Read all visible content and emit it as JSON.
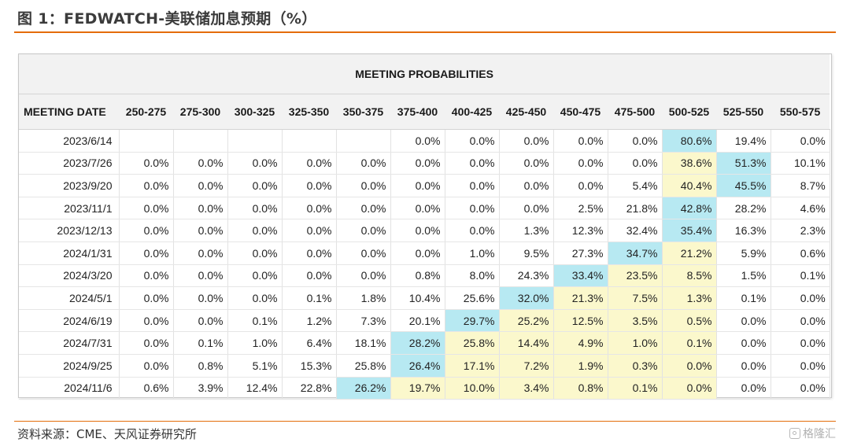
{
  "figure": {
    "title": "图 1：FEDWATCH-美联储加息预期（%）",
    "source": "资料来源：CME、天风证券研究所",
    "watermark": "格隆汇"
  },
  "table": {
    "title": "MEETING PROBABILITIES",
    "columns": [
      "MEETING DATE",
      "250-275",
      "275-300",
      "300-325",
      "325-350",
      "350-375",
      "375-400",
      "400-425",
      "425-450",
      "450-475",
      "475-500",
      "500-525",
      "525-550",
      "550-575"
    ],
    "rows": [
      {
        "date": "2023/6/14",
        "cells": [
          "",
          "",
          "",
          "",
          "",
          "0.0%",
          "0.0%",
          "0.0%",
          "0.0%",
          "0.0%",
          "80.6%",
          "19.4%",
          "0.0%"
        ],
        "hl": [
          "",
          "",
          "",
          "",
          "",
          "",
          "",
          "",
          "",
          "",
          "b",
          "",
          ""
        ]
      },
      {
        "date": "2023/7/26",
        "cells": [
          "0.0%",
          "0.0%",
          "0.0%",
          "0.0%",
          "0.0%",
          "0.0%",
          "0.0%",
          "0.0%",
          "0.0%",
          "0.0%",
          "38.6%",
          "51.3%",
          "10.1%"
        ],
        "hl": [
          "",
          "",
          "",
          "",
          "",
          "",
          "",
          "",
          "",
          "",
          "y",
          "b",
          ""
        ]
      },
      {
        "date": "2023/9/20",
        "cells": [
          "0.0%",
          "0.0%",
          "0.0%",
          "0.0%",
          "0.0%",
          "0.0%",
          "0.0%",
          "0.0%",
          "0.0%",
          "5.4%",
          "40.4%",
          "45.5%",
          "8.7%"
        ],
        "hl": [
          "",
          "",
          "",
          "",
          "",
          "",
          "",
          "",
          "",
          "",
          "y",
          "b",
          ""
        ]
      },
      {
        "date": "2023/11/1",
        "cells": [
          "0.0%",
          "0.0%",
          "0.0%",
          "0.0%",
          "0.0%",
          "0.0%",
          "0.0%",
          "0.0%",
          "2.5%",
          "21.8%",
          "42.8%",
          "28.2%",
          "4.6%"
        ],
        "hl": [
          "",
          "",
          "",
          "",
          "",
          "",
          "",
          "",
          "",
          "",
          "b",
          "",
          ""
        ]
      },
      {
        "date": "2023/12/13",
        "cells": [
          "0.0%",
          "0.0%",
          "0.0%",
          "0.0%",
          "0.0%",
          "0.0%",
          "0.0%",
          "1.3%",
          "12.3%",
          "32.4%",
          "35.4%",
          "16.3%",
          "2.3%"
        ],
        "hl": [
          "",
          "",
          "",
          "",
          "",
          "",
          "",
          "",
          "",
          "",
          "b",
          "",
          ""
        ]
      },
      {
        "date": "2024/1/31",
        "cells": [
          "0.0%",
          "0.0%",
          "0.0%",
          "0.0%",
          "0.0%",
          "0.0%",
          "1.0%",
          "9.5%",
          "27.3%",
          "34.7%",
          "21.2%",
          "5.9%",
          "0.6%"
        ],
        "hl": [
          "",
          "",
          "",
          "",
          "",
          "",
          "",
          "",
          "",
          "b",
          "y",
          "",
          ""
        ]
      },
      {
        "date": "2024/3/20",
        "cells": [
          "0.0%",
          "0.0%",
          "0.0%",
          "0.0%",
          "0.0%",
          "0.8%",
          "8.0%",
          "24.3%",
          "33.4%",
          "23.5%",
          "8.5%",
          "1.5%",
          "0.1%"
        ],
        "hl": [
          "",
          "",
          "",
          "",
          "",
          "",
          "",
          "",
          "b",
          "y",
          "y",
          "",
          ""
        ]
      },
      {
        "date": "2024/5/1",
        "cells": [
          "0.0%",
          "0.0%",
          "0.0%",
          "0.1%",
          "1.8%",
          "10.4%",
          "25.6%",
          "32.0%",
          "21.3%",
          "7.5%",
          "1.3%",
          "0.1%",
          "0.0%"
        ],
        "hl": [
          "",
          "",
          "",
          "",
          "",
          "",
          "",
          "b",
          "y",
          "y",
          "y",
          "",
          ""
        ]
      },
      {
        "date": "2024/6/19",
        "cells": [
          "0.0%",
          "0.0%",
          "0.1%",
          "1.2%",
          "7.3%",
          "20.1%",
          "29.7%",
          "25.2%",
          "12.5%",
          "3.5%",
          "0.5%",
          "0.0%",
          "0.0%"
        ],
        "hl": [
          "",
          "",
          "",
          "",
          "",
          "",
          "b",
          "y",
          "y",
          "y",
          "y",
          "",
          ""
        ]
      },
      {
        "date": "2024/7/31",
        "cells": [
          "0.0%",
          "0.1%",
          "1.0%",
          "6.4%",
          "18.1%",
          "28.2%",
          "25.8%",
          "14.4%",
          "4.9%",
          "1.0%",
          "0.1%",
          "0.0%",
          "0.0%"
        ],
        "hl": [
          "",
          "",
          "",
          "",
          "",
          "b",
          "y",
          "y",
          "y",
          "y",
          "y",
          "",
          ""
        ]
      },
      {
        "date": "2024/9/25",
        "cells": [
          "0.0%",
          "0.8%",
          "5.1%",
          "15.3%",
          "25.8%",
          "26.4%",
          "17.1%",
          "7.2%",
          "1.9%",
          "0.3%",
          "0.0%",
          "0.0%",
          "0.0%"
        ],
        "hl": [
          "",
          "",
          "",
          "",
          "",
          "b",
          "y",
          "y",
          "y",
          "y",
          "y",
          "",
          ""
        ]
      },
      {
        "date": "2024/11/6",
        "cells": [
          "0.6%",
          "3.9%",
          "12.4%",
          "22.8%",
          "26.2%",
          "19.7%",
          "10.0%",
          "3.4%",
          "0.8%",
          "0.1%",
          "0.0%",
          "0.0%",
          "0.0%"
        ],
        "hl": [
          "",
          "",
          "",
          "",
          "b",
          "y",
          "y",
          "y",
          "y",
          "y",
          "y",
          "",
          ""
        ]
      }
    ]
  },
  "colors": {
    "accent_rule": "#e46c0a",
    "highlight_blue": "#b7e9f2",
    "highlight_yellow": "#fbf8cc",
    "header_bg": "#f2f2f2"
  }
}
